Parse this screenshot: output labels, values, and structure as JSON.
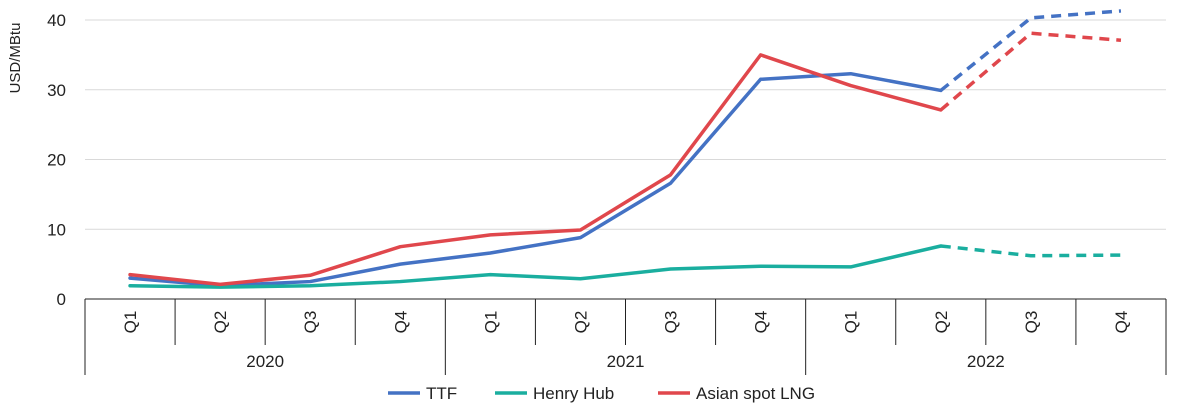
{
  "chart_data": {
    "type": "line",
    "title": "",
    "xlabel": "",
    "ylabel": "USD/MBtu",
    "ylim": [
      0,
      40
    ],
    "yticks": [
      0,
      10,
      20,
      30,
      40
    ],
    "grid": true,
    "legend_position": "bottom",
    "categories": [
      "Q1",
      "Q2",
      "Q3",
      "Q4",
      "Q1",
      "Q2",
      "Q3",
      "Q4",
      "Q1",
      "Q2",
      "Q3",
      "Q4"
    ],
    "year_groups": [
      {
        "label": "2020",
        "span": 4
      },
      {
        "label": "2021",
        "span": 4
      },
      {
        "label": "2022",
        "span": 4
      }
    ],
    "forecast_from_index": 9,
    "series": [
      {
        "name": "TTF",
        "color": "#4472C4",
        "values": [
          3.0,
          1.9,
          2.5,
          5.0,
          6.6,
          8.8,
          16.6,
          31.5,
          32.3,
          29.9,
          40.3,
          41.3
        ]
      },
      {
        "name": "Henry Hub",
        "color": "#1AAE9F",
        "values": [
          1.9,
          1.7,
          1.9,
          2.5,
          3.5,
          2.9,
          4.3,
          4.7,
          4.6,
          7.6,
          6.2,
          6.3
        ]
      },
      {
        "name": "Asian spot LNG",
        "color": "#E0474C",
        "values": [
          3.5,
          2.1,
          3.4,
          7.5,
          9.2,
          9.9,
          17.8,
          35.0,
          30.6,
          27.1,
          38.1,
          37.1
        ]
      }
    ]
  }
}
